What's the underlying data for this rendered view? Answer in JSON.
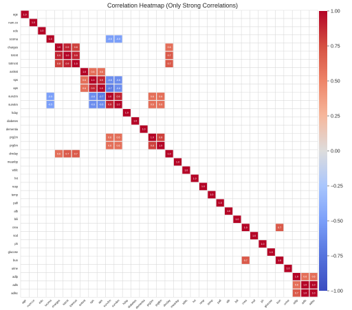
{
  "chart_data": {
    "type": "heatmap",
    "title": "Correlation Heatmap (Only Strong Correlations)",
    "variables": [
      "age",
      "num.co",
      "edu",
      "scoma",
      "charges",
      "totcst",
      "totmcst",
      "avtisst",
      "sps",
      "aps",
      "surv2m",
      "surv6m",
      "hday",
      "diabetes",
      "dementia",
      "prg2m",
      "prg6m",
      "dnrday",
      "meanbp",
      "wblc",
      "hrt",
      "resp",
      "temp",
      "pafi",
      "alb",
      "bili",
      "crea",
      "sod",
      "ph",
      "glucose",
      "bun",
      "urine",
      "adlp",
      "adls",
      "adlsc"
    ],
    "colorbar": {
      "ticks": [
        "1.00",
        "0.75",
        "0.50",
        "0.25",
        "0.00",
        "−0.25",
        "−0.50",
        "−0.75",
        "−1.00"
      ],
      "range": [
        -1,
        1
      ]
    },
    "cells": [
      {
        "row": "age",
        "col": "age",
        "value": 1.0,
        "label": "1.0"
      },
      {
        "row": "num.co",
        "col": "num.co",
        "value": 1.0,
        "label": "1.0"
      },
      {
        "row": "edu",
        "col": "edu",
        "value": 1.0,
        "label": "1.0"
      },
      {
        "row": "scoma",
        "col": "scoma",
        "value": 1.0,
        "label": "1.0"
      },
      {
        "row": "scoma",
        "col": "surv2m",
        "value": -0.5,
        "label": "-0.5"
      },
      {
        "row": "scoma",
        "col": "surv6m",
        "value": -0.5,
        "label": "-0.5"
      },
      {
        "row": "charges",
        "col": "charges",
        "value": 1.0,
        "label": "1.0"
      },
      {
        "row": "charges",
        "col": "totcst",
        "value": 0.9,
        "label": "0.9"
      },
      {
        "row": "charges",
        "col": "totmcst",
        "value": 0.8,
        "label": "0.8"
      },
      {
        "row": "charges",
        "col": "dnrday",
        "value": 0.6,
        "label": "0.6"
      },
      {
        "row": "totcst",
        "col": "charges",
        "value": 0.9,
        "label": "0.9"
      },
      {
        "row": "totcst",
        "col": "totcst",
        "value": 1.0,
        "label": "1.0"
      },
      {
        "row": "totcst",
        "col": "totmcst",
        "value": 0.9,
        "label": "0.9"
      },
      {
        "row": "totcst",
        "col": "dnrday",
        "value": 0.7,
        "label": "0.7"
      },
      {
        "row": "totmcst",
        "col": "charges",
        "value": 0.8,
        "label": "0.8"
      },
      {
        "row": "totmcst",
        "col": "totcst",
        "value": 0.9,
        "label": "0.9"
      },
      {
        "row": "totmcst",
        "col": "totmcst",
        "value": 1.0,
        "label": "1.0"
      },
      {
        "row": "totmcst",
        "col": "dnrday",
        "value": 0.7,
        "label": "0.7"
      },
      {
        "row": "avtisst",
        "col": "avtisst",
        "value": 1.0,
        "label": "1.0"
      },
      {
        "row": "avtisst",
        "col": "sps",
        "value": 0.6,
        "label": "0.6"
      },
      {
        "row": "avtisst",
        "col": "aps",
        "value": 0.6,
        "label": "0.6"
      },
      {
        "row": "sps",
        "col": "avtisst",
        "value": 0.6,
        "label": "0.6"
      },
      {
        "row": "sps",
        "col": "sps",
        "value": 1.0,
        "label": "1.0"
      },
      {
        "row": "sps",
        "col": "aps",
        "value": 0.9,
        "label": "0.9"
      },
      {
        "row": "sps",
        "col": "surv2m",
        "value": -0.6,
        "label": "-0.6"
      },
      {
        "row": "sps",
        "col": "surv6m",
        "value": -0.6,
        "label": "-0.6"
      },
      {
        "row": "aps",
        "col": "avtisst",
        "value": 0.6,
        "label": "0.6"
      },
      {
        "row": "aps",
        "col": "sps",
        "value": 0.9,
        "label": "0.9"
      },
      {
        "row": "aps",
        "col": "aps",
        "value": 1.0,
        "label": "1.0"
      },
      {
        "row": "aps",
        "col": "surv2m",
        "value": -0.7,
        "label": "-0.7"
      },
      {
        "row": "aps",
        "col": "surv6m",
        "value": -0.6,
        "label": "-0.6"
      },
      {
        "row": "surv2m",
        "col": "scoma",
        "value": -0.5,
        "label": "-0.5"
      },
      {
        "row": "surv2m",
        "col": "sps",
        "value": -0.6,
        "label": "-0.6"
      },
      {
        "row": "surv2m",
        "col": "aps",
        "value": -0.7,
        "label": "-0.7"
      },
      {
        "row": "surv2m",
        "col": "surv2m",
        "value": 1.0,
        "label": "1.0"
      },
      {
        "row": "surv2m",
        "col": "surv6m",
        "value": 0.9,
        "label": "0.9"
      },
      {
        "row": "surv2m",
        "col": "prg2m",
        "value": 0.6,
        "label": "0.6"
      },
      {
        "row": "surv2m",
        "col": "prg6m",
        "value": 0.6,
        "label": "0.6"
      },
      {
        "row": "surv6m",
        "col": "scoma",
        "value": -0.5,
        "label": "-0.5"
      },
      {
        "row": "surv6m",
        "col": "sps",
        "value": -0.6,
        "label": "-0.6"
      },
      {
        "row": "surv6m",
        "col": "aps",
        "value": -0.6,
        "label": "-0.6"
      },
      {
        "row": "surv6m",
        "col": "surv2m",
        "value": 0.9,
        "label": "0.9"
      },
      {
        "row": "surv6m",
        "col": "surv6m",
        "value": 1.0,
        "label": "1.0"
      },
      {
        "row": "surv6m",
        "col": "prg2m",
        "value": 0.6,
        "label": "0.6"
      },
      {
        "row": "surv6m",
        "col": "prg6m",
        "value": 0.6,
        "label": "0.6"
      },
      {
        "row": "hday",
        "col": "hday",
        "value": 1.0,
        "label": "1.0"
      },
      {
        "row": "diabetes",
        "col": "diabetes",
        "value": 1.0,
        "label": "1.0"
      },
      {
        "row": "dementia",
        "col": "dementia",
        "value": 1.0,
        "label": "1.0"
      },
      {
        "row": "prg2m",
        "col": "surv2m",
        "value": 0.6,
        "label": "0.6"
      },
      {
        "row": "prg2m",
        "col": "surv6m",
        "value": 0.6,
        "label": "0.6"
      },
      {
        "row": "prg2m",
        "col": "prg2m",
        "value": 1.0,
        "label": "1.0"
      },
      {
        "row": "prg2m",
        "col": "prg6m",
        "value": 0.8,
        "label": "0.8"
      },
      {
        "row": "prg6m",
        "col": "surv2m",
        "value": 0.6,
        "label": "0.6"
      },
      {
        "row": "prg6m",
        "col": "surv6m",
        "value": 0.6,
        "label": "0.6"
      },
      {
        "row": "prg6m",
        "col": "prg2m",
        "value": 0.8,
        "label": "0.8"
      },
      {
        "row": "prg6m",
        "col": "prg6m",
        "value": 1.0,
        "label": "1.0"
      },
      {
        "row": "dnrday",
        "col": "charges",
        "value": 0.6,
        "label": "0.6"
      },
      {
        "row": "dnrday",
        "col": "totcst",
        "value": 0.7,
        "label": "0.7"
      },
      {
        "row": "dnrday",
        "col": "totmcst",
        "value": 0.7,
        "label": "0.7"
      },
      {
        "row": "dnrday",
        "col": "dnrday",
        "value": 1.0,
        "label": "1.0"
      },
      {
        "row": "meanbp",
        "col": "meanbp",
        "value": 1.0,
        "label": "1.0"
      },
      {
        "row": "wblc",
        "col": "wblc",
        "value": 1.0,
        "label": "1.0"
      },
      {
        "row": "hrt",
        "col": "hrt",
        "value": 1.0,
        "label": "1.0"
      },
      {
        "row": "resp",
        "col": "resp",
        "value": 1.0,
        "label": "1.0"
      },
      {
        "row": "temp",
        "col": "temp",
        "value": 1.0,
        "label": "1.0"
      },
      {
        "row": "pafi",
        "col": "pafi",
        "value": 1.0,
        "label": "1.0"
      },
      {
        "row": "alb",
        "col": "alb",
        "value": 1.0,
        "label": "1.0"
      },
      {
        "row": "bili",
        "col": "bili",
        "value": 1.0,
        "label": "1.0"
      },
      {
        "row": "crea",
        "col": "crea",
        "value": 1.0,
        "label": "1.0"
      },
      {
        "row": "crea",
        "col": "bun",
        "value": 0.7,
        "label": "0.7"
      },
      {
        "row": "sod",
        "col": "sod",
        "value": 1.0,
        "label": "1.0"
      },
      {
        "row": "ph",
        "col": "ph",
        "value": 1.0,
        "label": "1.0"
      },
      {
        "row": "glucose",
        "col": "glucose",
        "value": 1.0,
        "label": "1.0"
      },
      {
        "row": "bun",
        "col": "crea",
        "value": 0.7,
        "label": "0.7"
      },
      {
        "row": "bun",
        "col": "bun",
        "value": 1.0,
        "label": "1.0"
      },
      {
        "row": "urine",
        "col": "urine",
        "value": 1.0,
        "label": "1.0"
      },
      {
        "row": "adlp",
        "col": "adlp",
        "value": 1.0,
        "label": "1.0"
      },
      {
        "row": "adlp",
        "col": "adls",
        "value": 0.6,
        "label": "0.6"
      },
      {
        "row": "adlp",
        "col": "adlsc",
        "value": 0.6,
        "label": "0.6"
      },
      {
        "row": "adls",
        "col": "adlp",
        "value": 0.6,
        "label": "0.6"
      },
      {
        "row": "adls",
        "col": "adls",
        "value": 1.0,
        "label": "1.0"
      },
      {
        "row": "adls",
        "col": "adlsc",
        "value": 1.0,
        "label": "1.0"
      },
      {
        "row": "adlsc",
        "col": "adlp",
        "value": 0.7,
        "label": "0.7"
      },
      {
        "row": "adlsc",
        "col": "adls",
        "value": 1.0,
        "label": "1.0"
      },
      {
        "row": "adlsc",
        "col": "adlsc",
        "value": 1.0,
        "label": "1.0"
      }
    ]
  }
}
